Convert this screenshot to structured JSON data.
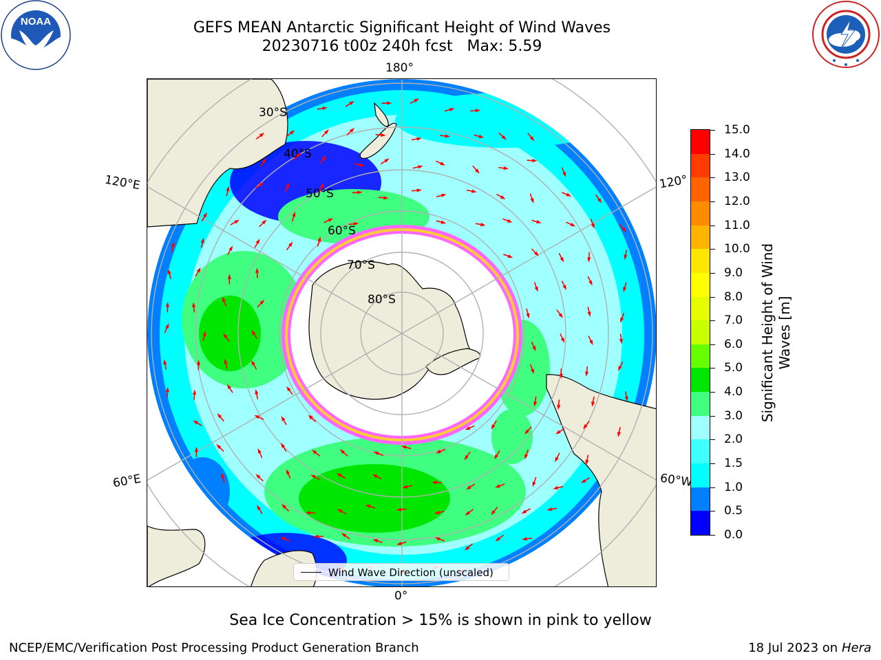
{
  "header": {
    "title_line1": "GEFS MEAN Antarctic Significant Height of Wind Waves",
    "title_line2": "20230716 t00z 240h fcst   Max: 5.59"
  },
  "logos": {
    "noaa_text": "NOAA",
    "noaa_ring_text": "NATIONAL OCEANIC AND ATMOSPHERIC ADMINISTRATION · U.S. DEPARTMENT OF COMMERCE ·",
    "nws_ring_text": "NATIONAL WEATHER SERVICE"
  },
  "map": {
    "projection": "south-polar-stereographic",
    "longitude_labels": [
      "180°",
      "120°E",
      "120°",
      "60°E",
      "60°W",
      "0°"
    ],
    "latitude_labels": [
      "30°S",
      "40°S",
      "50°S",
      "60°S",
      "70°S",
      "80°S"
    ],
    "legend_label": "Wind Wave Direction (unscaled)",
    "land_color": "#eeecdb",
    "ice_colors": [
      "#ff33cc",
      "#ff66ff",
      "#ffcc33"
    ],
    "arrow_color": "#ff0000"
  },
  "colorbar": {
    "levels": [
      "0.0",
      "0.5",
      "1.0",
      "1.5",
      "2.0",
      "3.0",
      "4.0",
      "5.0",
      "6.0",
      "7.0",
      "8.0",
      "9.0",
      "10.0",
      "11.0",
      "12.0",
      "13.0",
      "14.0",
      "15.0"
    ],
    "colors": [
      "#0000ff",
      "#0080ff",
      "#00ffff",
      "#40ffff",
      "#a0ffff",
      "#40ff80",
      "#00e600",
      "#66ff00",
      "#c8ff00",
      "#e6ff00",
      "#ffff00",
      "#ffe600",
      "#ffb400",
      "#ff8c00",
      "#ff6400",
      "#ff3c00",
      "#ff0000"
    ],
    "label_line1": "Significant Height of Wind",
    "label_line2": "Waves [m]"
  },
  "caption": "Sea Ice Concentration > 15% is shown in pink to yellow",
  "footer": {
    "left": "NCEP/EMC/Verification Post Processing Product Generation Branch",
    "date": "18 Jul 2023 on",
    "machine": "Hera"
  }
}
